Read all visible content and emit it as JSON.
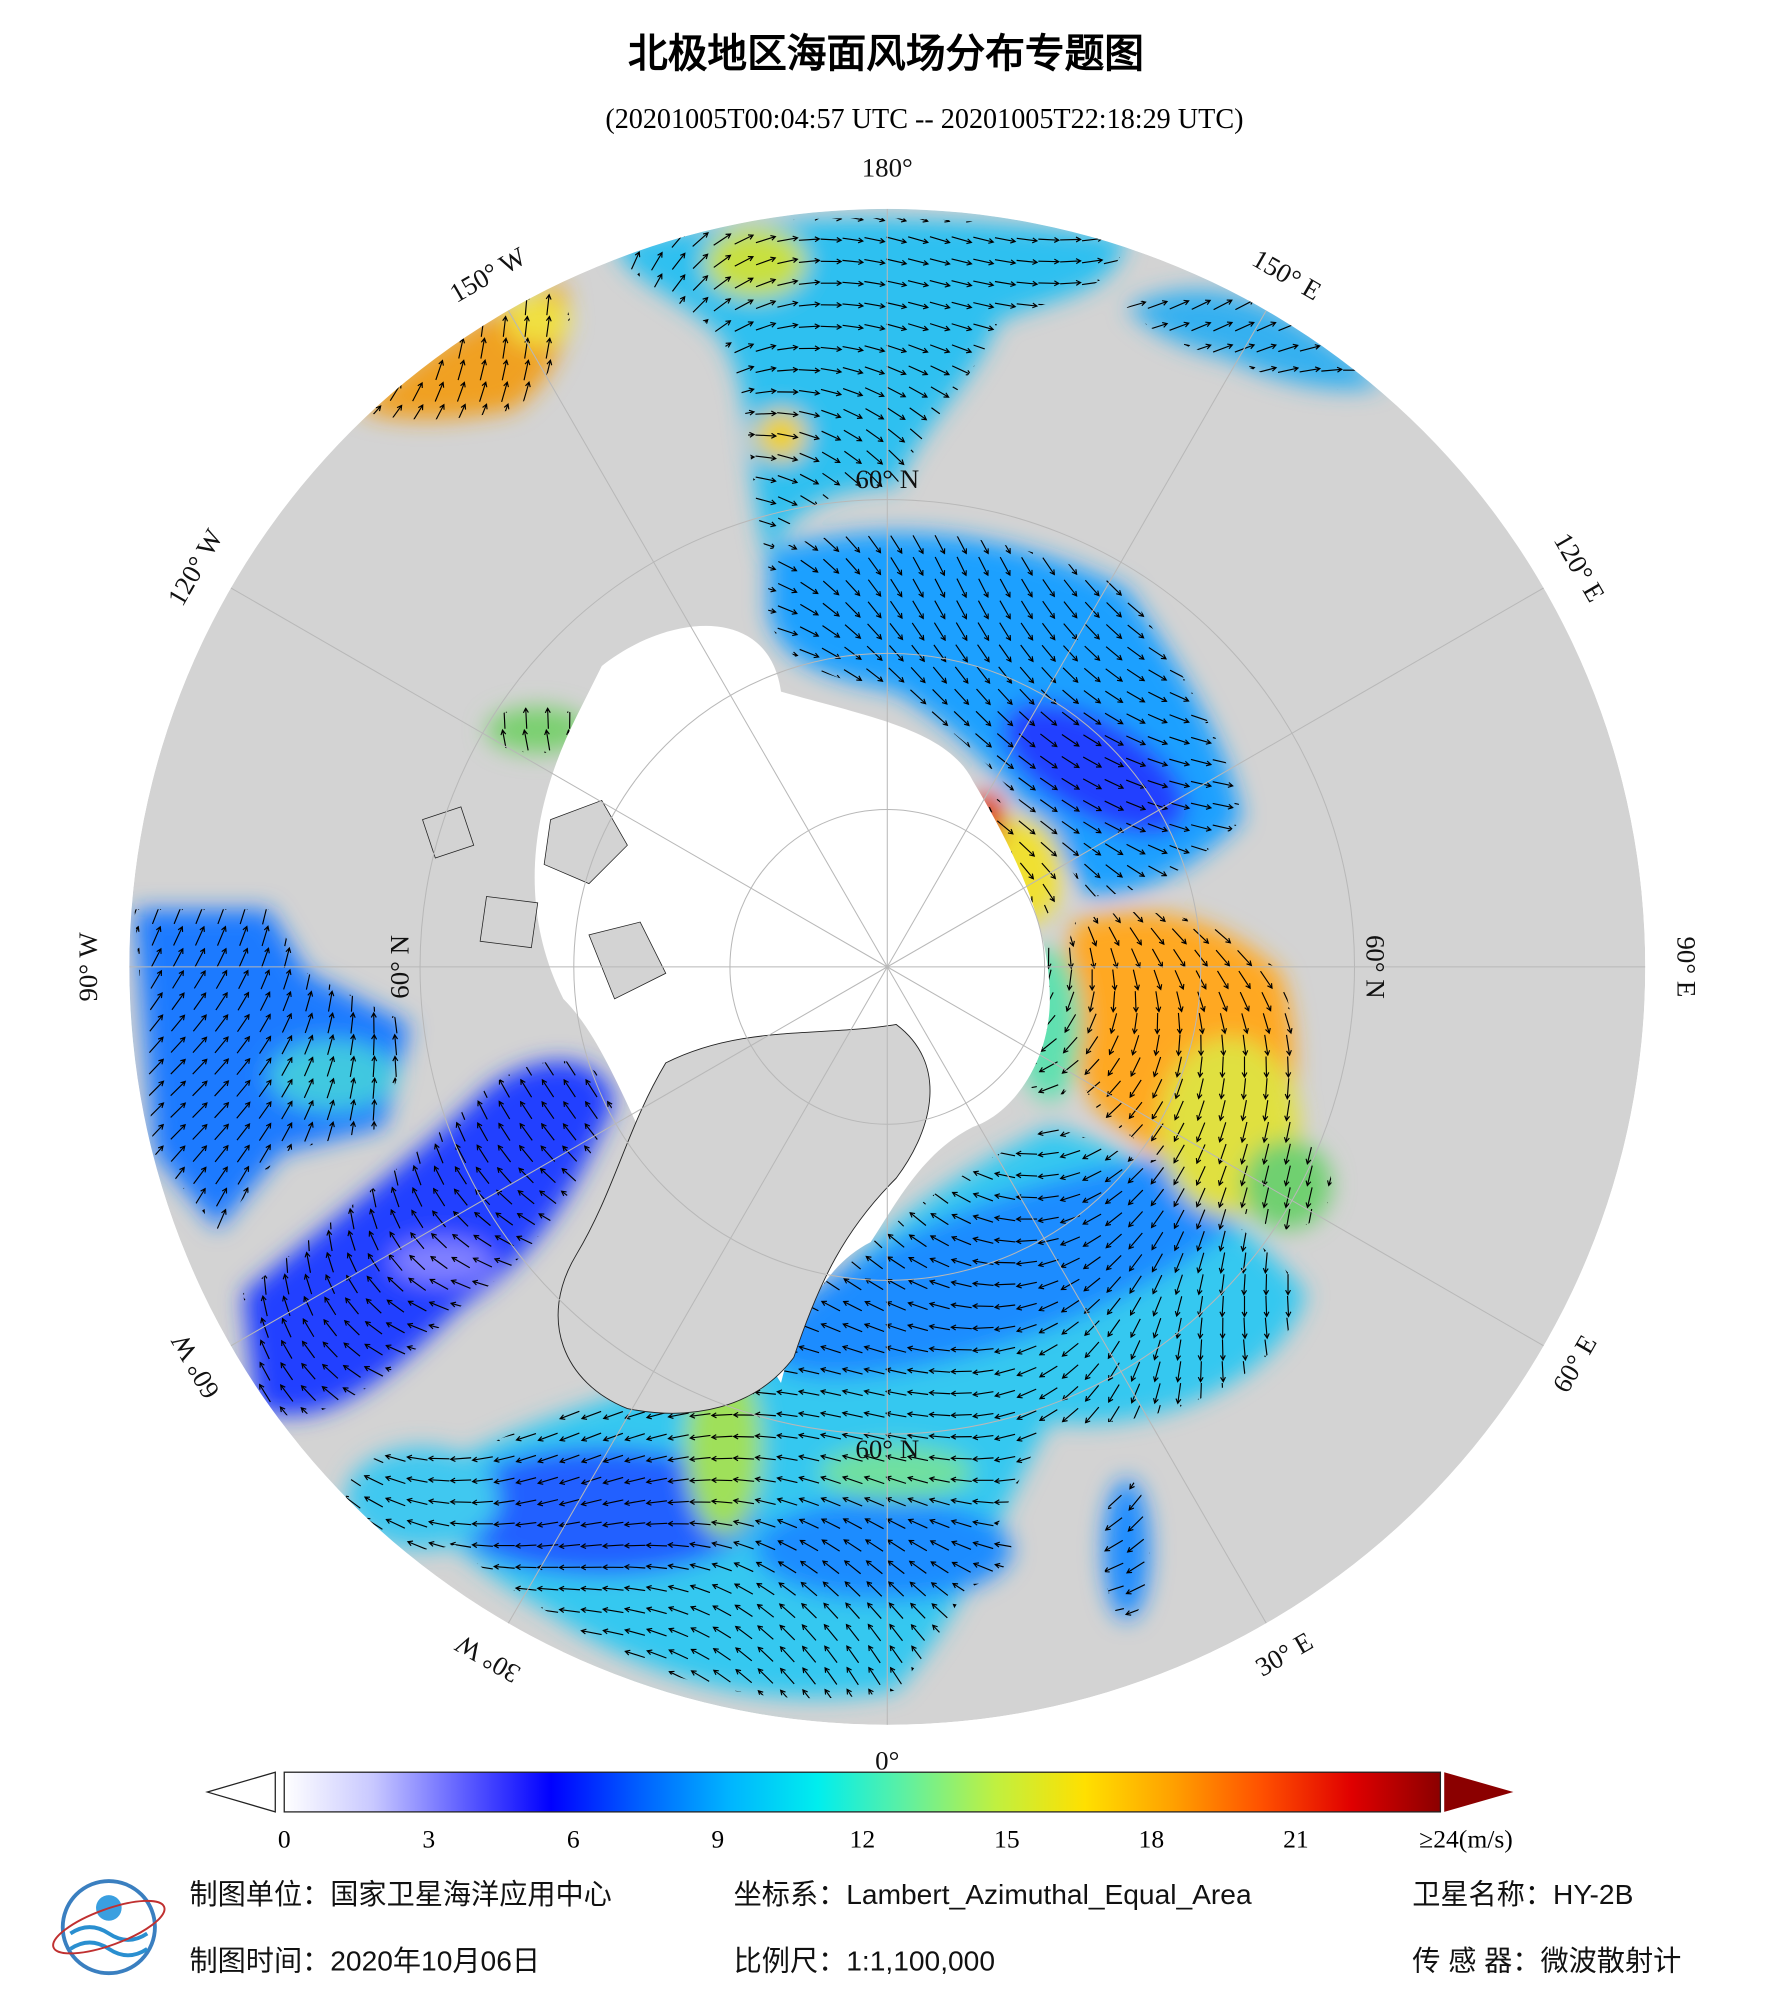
{
  "title": "北极地区海面风场分布专题图",
  "subtitle": "(20201005T00:04:57 UTC -- 20201005T22:18:29 UTC)",
  "map": {
    "longitude_labels": [
      {
        "value": 180,
        "label": "180°"
      },
      {
        "value": 150,
        "label": "150° E"
      },
      {
        "value": 120,
        "label": "120° E"
      },
      {
        "value": 90,
        "label": "90° E"
      },
      {
        "value": 60,
        "label": "60° E"
      },
      {
        "value": 30,
        "label": "30° E"
      },
      {
        "value": 0,
        "label": "0°"
      },
      {
        "value": -30,
        "label": "30° W"
      },
      {
        "value": -60,
        "label": "60° W"
      },
      {
        "value": -90,
        "label": "90° W"
      },
      {
        "value": -120,
        "label": "120° W"
      },
      {
        "value": -150,
        "label": "150° W"
      }
    ],
    "latitude_labels": [
      {
        "value": 60,
        "label": "60° N"
      }
    ]
  },
  "colorbar": {
    "lim": [
      0,
      24
    ],
    "ticks": [
      0,
      3,
      6,
      9,
      12,
      15,
      18,
      21,
      {
        "value": 24,
        "label": "≥24(m/s)"
      }
    ],
    "colors": [
      "#ffffff",
      "#c8c8ff",
      "#6060ff",
      "#0000ff",
      "#0060ff",
      "#00b4ff",
      "#00eeee",
      "#60f0a0",
      "#c0f040",
      "#ffe000",
      "#ffa000",
      "#ff5000",
      "#e00000",
      "#8b0000"
    ],
    "under_color": "#ffffff",
    "over_color": "#8b0000"
  },
  "footer": {
    "organization": "制图单位：国家卫星海洋应用中心",
    "date": "制图时间：2020年10月06日",
    "projection": "坐标系：Lambert_Azimuthal_Equal_Area",
    "scale": "比例尺：1:1,100,000",
    "satellite": "卫星名称：HY-2B",
    "sensor": "传 感 器：微波散射计"
  }
}
